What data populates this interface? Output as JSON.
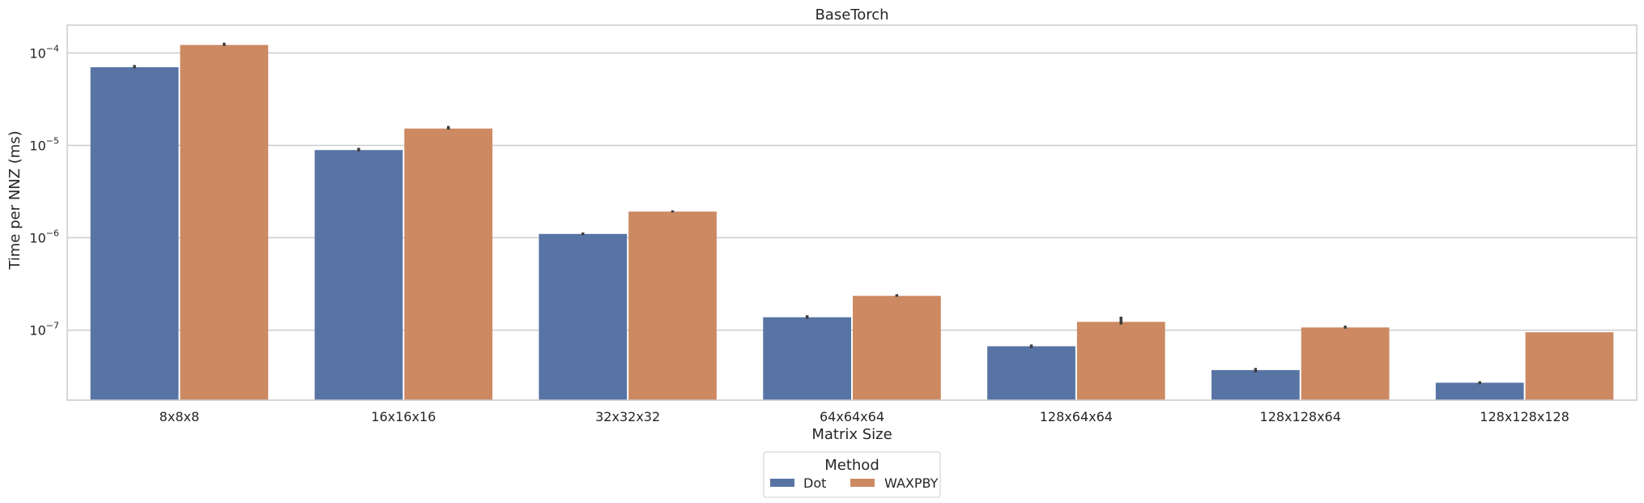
{
  "chart_data": {
    "type": "bar",
    "title": "BaseTorch",
    "xlabel": "Matrix Size",
    "ylabel": "Time per NNZ (ms)",
    "yscale": "log",
    "ylim": [
      1.75e-08,
      0.0002
    ],
    "yticks": [
      {
        "value": 1e-07,
        "label": "10",
        "exp": "−7"
      },
      {
        "value": 1e-06,
        "label": "10",
        "exp": "−6"
      },
      {
        "value": 1e-05,
        "label": "10",
        "exp": "−5"
      },
      {
        "value": 0.0001,
        "label": "10",
        "exp": "−4"
      }
    ],
    "categories": [
      "8x8x8",
      "16x16x16",
      "32x32x32",
      "64x64x64",
      "128x64x64",
      "128x128x64",
      "128x128x128"
    ],
    "series": [
      {
        "name": "Dot",
        "color": "#5874a4",
        "values": [
          7e-05,
          8.9e-06,
          1.1e-06,
          1.38e-07,
          6.7e-08,
          3.7e-08,
          2.7e-08
        ],
        "error_low": [
          6.8e-05,
          8.6e-06,
          1.07e-06,
          1.33e-07,
          6.4e-08,
          3.5e-08,
          2.6e-08
        ],
        "error_high": [
          7.4e-05,
          9.4e-06,
          1.14e-06,
          1.45e-07,
          7e-08,
          3.9e-08,
          2.8e-08
        ]
      },
      {
        "name": "WAXPBY",
        "color": "#cc8962",
        "values": [
          0.000122,
          1.52e-05,
          1.92e-06,
          2.35e-07,
          1.23e-07,
          1.07e-07,
          9.5e-08
        ],
        "error_low": [
          0.000119,
          1.48e-05,
          1.88e-06,
          2.3e-07,
          1.15e-07,
          1.04e-07,
          9.5e-08
        ],
        "error_high": [
          0.000129,
          1.62e-05,
          1.98e-06,
          2.45e-07,
          1.4e-07,
          1.12e-07,
          9.5e-08
        ]
      }
    ],
    "legend": {
      "title": "Method",
      "placement": "bottom-center"
    },
    "grid": true
  }
}
